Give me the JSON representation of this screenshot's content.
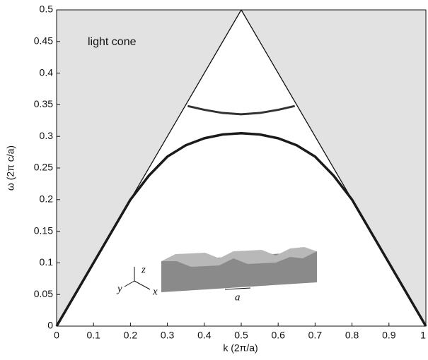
{
  "chart_data": {
    "type": "line",
    "xlabel": "k (2π/a)",
    "ylabel": "ω (2π c/a)",
    "annotations": [
      "light cone"
    ],
    "inset_labels": [
      "z",
      "y",
      "x",
      "a"
    ],
    "xlim": [
      0,
      1
    ],
    "xticks": [
      0,
      0.1,
      0.2,
      0.3,
      0.4,
      0.5,
      0.6,
      0.7,
      0.8,
      0.9,
      1
    ],
    "ylim": [
      0,
      0.5
    ],
    "yticks": [
      0,
      0.05,
      0.1,
      0.15,
      0.2,
      0.25,
      0.3,
      0.35,
      0.4,
      0.45,
      0.5
    ],
    "light_cone_fill": "#e2e2e2",
    "series": [
      {
        "color": "#111111",
        "x": [
          0,
          0.5,
          1
        ],
        "values": [
          0,
          0.5,
          0
        ]
      },
      {
        "color": "#1a1a1a",
        "x": [
          0,
          0.1,
          0.2,
          0.25,
          0.3,
          0.35,
          0.4,
          0.45,
          0.5,
          0.55,
          0.6,
          0.65,
          0.7,
          0.75,
          0.8,
          0.9,
          1
        ],
        "values": [
          0,
          0.1,
          0.2,
          0.238,
          0.268,
          0.286,
          0.297,
          0.303,
          0.305,
          0.303,
          0.297,
          0.286,
          0.268,
          0.238,
          0.2,
          0.1,
          0
        ]
      },
      {
        "color": "#333333",
        "x": [
          0.355,
          0.4,
          0.45,
          0.5,
          0.55,
          0.6,
          0.645
        ],
        "values": [
          0.348,
          0.342,
          0.337,
          0.335,
          0.337,
          0.342,
          0.348
        ]
      }
    ]
  }
}
